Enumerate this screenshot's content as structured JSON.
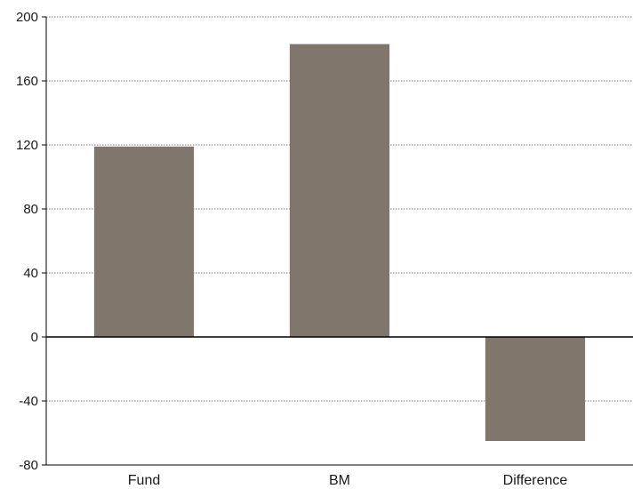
{
  "chart_data": {
    "type": "bar",
    "title": "",
    "xlabel": "",
    "ylabel": "",
    "categories": [
      "Fund",
      "BM",
      "Difference"
    ],
    "values": [
      119,
      183,
      -65
    ],
    "ylim": [
      -80,
      200
    ],
    "yticks": [
      "200",
      "160",
      "120",
      "80",
      "40",
      "0",
      "-40",
      "-80"
    ],
    "grid": true,
    "legend": "none",
    "bar_color": "#80766c"
  }
}
